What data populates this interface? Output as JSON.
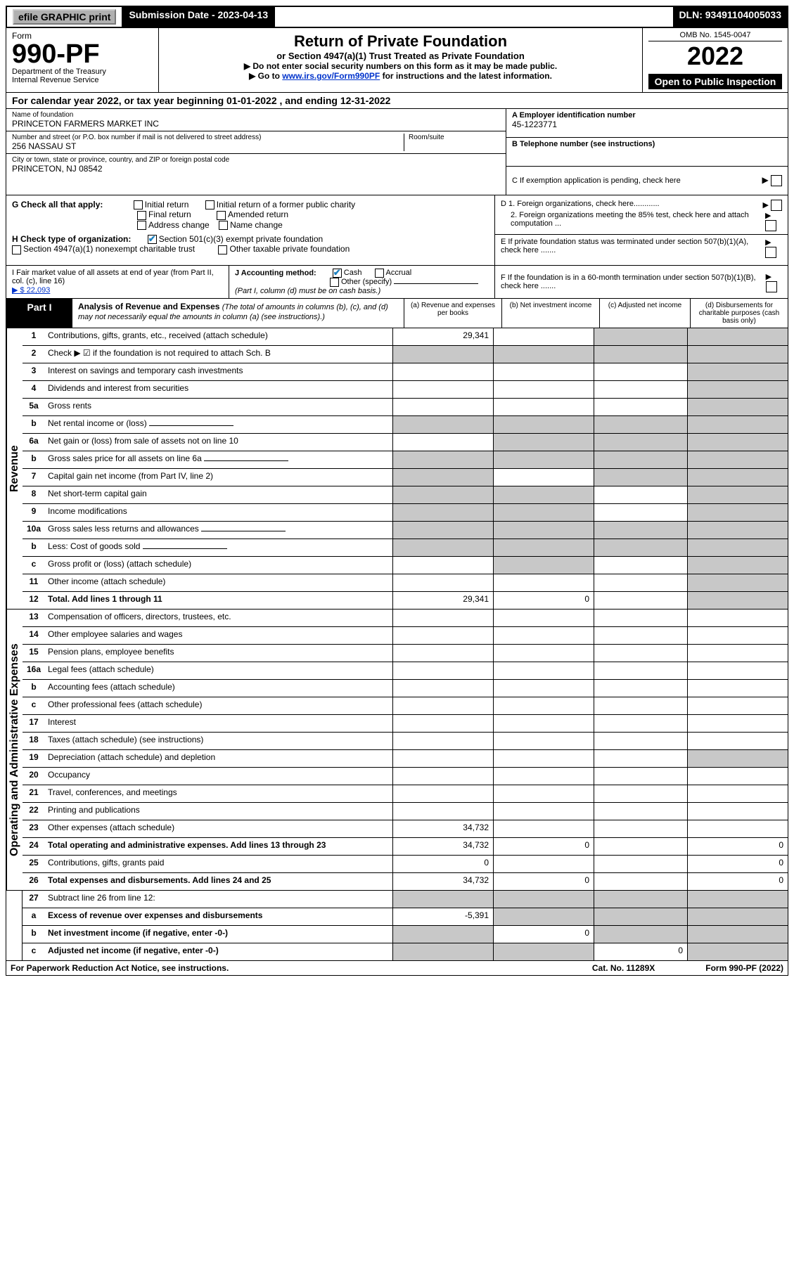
{
  "top_bar": {
    "efile": "efile GRAPHIC print",
    "sub_date_label": "Submission Date - 2023-04-13",
    "dln": "DLN: 93491104005033"
  },
  "header": {
    "form_label": "Form",
    "form_no": "990-PF",
    "dept": "Department of the Treasury",
    "irs": "Internal Revenue Service",
    "title": "Return of Private Foundation",
    "subtitle": "or Section 4947(a)(1) Trust Treated as Private Foundation",
    "instr1": "▶ Do not enter social security numbers on this form as it may be made public.",
    "instr2_pre": "▶ Go to ",
    "instr2_link": "www.irs.gov/Form990PF",
    "instr2_post": " for instructions and the latest information.",
    "omb": "OMB No. 1545-0047",
    "year": "2022",
    "open": "Open to Public Inspection"
  },
  "cal_year": "For calendar year 2022, or tax year beginning 01-01-2022 , and ending 12-31-2022",
  "org": {
    "name_label": "Name of foundation",
    "name": "PRINCETON FARMERS MARKET INC",
    "addr_label": "Number and street (or P.O. box number if mail is not delivered to street address)",
    "addr": "256 NASSAU ST",
    "room_label": "Room/suite",
    "city_label": "City or town, state or province, country, and ZIP or foreign postal code",
    "city": "PRINCETON, NJ  08542",
    "ein_label": "A Employer identification number",
    "ein": "45-1223771",
    "tel_label": "B Telephone number (see instructions)",
    "c_label": "C If exemption application is pending, check here"
  },
  "g": {
    "label": "G Check all that apply:",
    "opts": [
      "Initial return",
      "Initial return of a former public charity",
      "Final return",
      "Amended return",
      "Address change",
      "Name change"
    ]
  },
  "d": {
    "d1": "D 1. Foreign organizations, check here............",
    "d2": "2. Foreign organizations meeting the 85% test, check here and attach computation ...",
    "e": "E  If private foundation status was terminated under section 507(b)(1)(A), check here .......",
    "f": "F  If the foundation is in a 60-month termination under section 507(b)(1)(B), check here ......."
  },
  "h": {
    "label": "H Check type of organization:",
    "o1": "Section 501(c)(3) exempt private foundation",
    "o2": "Section 4947(a)(1) nonexempt charitable trust",
    "o3": "Other taxable private foundation"
  },
  "i": {
    "label": "I Fair market value of all assets at end of year (from Part II, col. (c), line 16)",
    "val": "▶ $  22,093"
  },
  "j": {
    "label": "J Accounting method:",
    "o1": "Cash",
    "o2": "Accrual",
    "o3": "Other (specify)",
    "note": "(Part I, column (d) must be on cash basis.)"
  },
  "part1": {
    "tab": "Part I",
    "title": "Analysis of Revenue and Expenses",
    "note": "(The total of amounts in columns (b), (c), and (d) may not necessarily equal the amounts in column (a) (see instructions).)",
    "col_a": "(a) Revenue and expenses per books",
    "col_b": "(b) Net investment income",
    "col_c": "(c) Adjusted net income",
    "col_d": "(d) Disbursements for charitable purposes (cash basis only)"
  },
  "revenue": {
    "label": "Revenue",
    "rows": [
      {
        "ln": "1",
        "desc": "Contributions, gifts, grants, etc., received (attach schedule)",
        "a": "29,341",
        "grey_b": false,
        "grey_c": true,
        "grey_d": true
      },
      {
        "ln": "2",
        "desc": "Check ▶ ☑ if the foundation is not required to attach Sch. B",
        "nocell": true
      },
      {
        "ln": "3",
        "desc": "Interest on savings and temporary cash investments",
        "grey_d": true
      },
      {
        "ln": "4",
        "desc": "Dividends and interest from securities",
        "grey_d": true
      },
      {
        "ln": "5a",
        "desc": "Gross rents",
        "grey_d": true
      },
      {
        "ln": "b",
        "desc": "Net rental income or (loss)",
        "inline": true,
        "grey_a": true,
        "grey_b": true,
        "grey_c": true,
        "grey_d": true
      },
      {
        "ln": "6a",
        "desc": "Net gain or (loss) from sale of assets not on line 10",
        "grey_b": true,
        "grey_c": true,
        "grey_d": true
      },
      {
        "ln": "b",
        "desc": "Gross sales price for all assets on line 6a",
        "inline": true,
        "grey_a": true,
        "grey_b": true,
        "grey_c": true,
        "grey_d": true
      },
      {
        "ln": "7",
        "desc": "Capital gain net income (from Part IV, line 2)",
        "grey_a": true,
        "grey_c": true,
        "grey_d": true
      },
      {
        "ln": "8",
        "desc": "Net short-term capital gain",
        "grey_a": true,
        "grey_b": true,
        "grey_d": true
      },
      {
        "ln": "9",
        "desc": "Income modifications",
        "grey_a": true,
        "grey_b": true,
        "grey_d": true
      },
      {
        "ln": "10a",
        "desc": "Gross sales less returns and allowances",
        "inline": true,
        "grey_a": true,
        "grey_b": true,
        "grey_c": true,
        "grey_d": true
      },
      {
        "ln": "b",
        "desc": "Less: Cost of goods sold",
        "inline": true,
        "grey_a": true,
        "grey_b": true,
        "grey_c": true,
        "grey_d": true
      },
      {
        "ln": "c",
        "desc": "Gross profit or (loss) (attach schedule)",
        "grey_b": true,
        "grey_d": true
      },
      {
        "ln": "11",
        "desc": "Other income (attach schedule)",
        "grey_d": true
      },
      {
        "ln": "12",
        "desc": "Total. Add lines 1 through 11",
        "bold": true,
        "a": "29,341",
        "b": "0",
        "grey_d": true
      }
    ]
  },
  "expenses": {
    "label": "Operating and Administrative Expenses",
    "rows": [
      {
        "ln": "13",
        "desc": "Compensation of officers, directors, trustees, etc."
      },
      {
        "ln": "14",
        "desc": "Other employee salaries and wages"
      },
      {
        "ln": "15",
        "desc": "Pension plans, employee benefits"
      },
      {
        "ln": "16a",
        "desc": "Legal fees (attach schedule)"
      },
      {
        "ln": "b",
        "desc": "Accounting fees (attach schedule)"
      },
      {
        "ln": "c",
        "desc": "Other professional fees (attach schedule)"
      },
      {
        "ln": "17",
        "desc": "Interest"
      },
      {
        "ln": "18",
        "desc": "Taxes (attach schedule) (see instructions)"
      },
      {
        "ln": "19",
        "desc": "Depreciation (attach schedule) and depletion",
        "grey_d": true
      },
      {
        "ln": "20",
        "desc": "Occupancy"
      },
      {
        "ln": "21",
        "desc": "Travel, conferences, and meetings"
      },
      {
        "ln": "22",
        "desc": "Printing and publications"
      },
      {
        "ln": "23",
        "desc": "Other expenses (attach schedule)",
        "a": "34,732"
      },
      {
        "ln": "24",
        "desc": "Total operating and administrative expenses. Add lines 13 through 23",
        "bold": true,
        "a": "34,732",
        "b": "0",
        "d": "0"
      },
      {
        "ln": "25",
        "desc": "Contributions, gifts, grants paid",
        "a": "0",
        "d": "0"
      },
      {
        "ln": "26",
        "desc": "Total expenses and disbursements. Add lines 24 and 25",
        "bold": true,
        "a": "34,732",
        "b": "0",
        "d": "0"
      }
    ]
  },
  "bottom": {
    "rows": [
      {
        "ln": "27",
        "desc": "Subtract line 26 from line 12:",
        "grey_a": true,
        "grey_b": true,
        "grey_c": true,
        "grey_d": true
      },
      {
        "ln": "a",
        "desc": "Excess of revenue over expenses and disbursements",
        "bold": true,
        "a": "-5,391",
        "grey_b": true,
        "grey_c": true,
        "grey_d": true
      },
      {
        "ln": "b",
        "desc": "Net investment income (if negative, enter -0-)",
        "bold": true,
        "grey_a": true,
        "b": "0",
        "grey_c": true,
        "grey_d": true
      },
      {
        "ln": "c",
        "desc": "Adjusted net income (if negative, enter -0-)",
        "bold": true,
        "grey_a": true,
        "grey_b": true,
        "c": "0",
        "grey_d": true
      }
    ]
  },
  "footer": {
    "left": "For Paperwork Reduction Act Notice, see instructions.",
    "mid": "Cat. No. 11289X",
    "right": "Form 990-PF (2022)"
  },
  "colors": {
    "grey": "#c8c8c8",
    "link": "#0033cc",
    "check": "#1a7fbf"
  }
}
